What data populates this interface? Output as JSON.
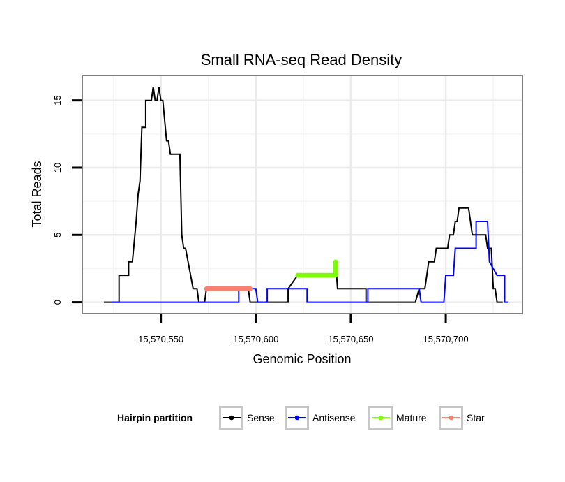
{
  "chart_data": {
    "type": "line",
    "title": "Small RNA-seq Read Density",
    "xlabel": "Genomic Position",
    "ylabel": "Total Reads",
    "xlim": [
      15570509,
      15570740
    ],
    "ylim": [
      -0.8,
      16.8
    ],
    "x_ticks": [
      {
        "value": 15570550,
        "label": "15,570,550"
      },
      {
        "value": 15570600,
        "label": "15,570,600"
      },
      {
        "value": 15570650,
        "label": "15,570,650"
      },
      {
        "value": 15570700,
        "label": "15,570,700"
      }
    ],
    "y_ticks": [
      {
        "value": 0,
        "label": "0"
      },
      {
        "value": 5,
        "label": "5"
      },
      {
        "value": 10,
        "label": "10"
      },
      {
        "value": 15,
        "label": "15"
      }
    ],
    "grid": true,
    "legend": {
      "title": "Hairpin partition",
      "position": "bottom",
      "entries": [
        {
          "name": "Sense",
          "color": "#000000"
        },
        {
          "name": "Antisense",
          "color": "#0000ff"
        },
        {
          "name": "Mature",
          "color": "#7cfc00"
        },
        {
          "name": "Star",
          "color": "#fa8072"
        }
      ]
    },
    "series": [
      {
        "name": "Sense",
        "color": "#000000",
        "points": [
          [
            15570520,
            0
          ],
          [
            15570528,
            0
          ],
          [
            15570528,
            2
          ],
          [
            15570533,
            2
          ],
          [
            15570533,
            3
          ],
          [
            15570535,
            3
          ],
          [
            15570537,
            6
          ],
          [
            15570538,
            8
          ],
          [
            15570539,
            9
          ],
          [
            15570540,
            13
          ],
          [
            15570542,
            13
          ],
          [
            15570542,
            15
          ],
          [
            15570545,
            15
          ],
          [
            15570546,
            16
          ],
          [
            15570547,
            15
          ],
          [
            15570548,
            15
          ],
          [
            15570549,
            16
          ],
          [
            15570550,
            15
          ],
          [
            15570551,
            15
          ],
          [
            15570553,
            12
          ],
          [
            15570554,
            12
          ],
          [
            15570555,
            11
          ],
          [
            15570560,
            11
          ],
          [
            15570561,
            5
          ],
          [
            15570562,
            4
          ],
          [
            15570563,
            4
          ],
          [
            15570567,
            1
          ],
          [
            15570569,
            1
          ],
          [
            15570570,
            0
          ],
          [
            15570573,
            0
          ],
          [
            15570574,
            1
          ],
          [
            15570596,
            1
          ],
          [
            15570597,
            0
          ],
          [
            15570617,
            0
          ],
          [
            15570617,
            1
          ],
          [
            15570622,
            2
          ],
          [
            15570642,
            2
          ],
          [
            15570642,
            3
          ],
          [
            15570643,
            1
          ],
          [
            15570658,
            1
          ],
          [
            15570658,
            0
          ],
          [
            15570684,
            0
          ],
          [
            15570686,
            1
          ],
          [
            15570689,
            1
          ],
          [
            15570690,
            2
          ],
          [
            15570691,
            3
          ],
          [
            15570694,
            3
          ],
          [
            15570695,
            4
          ],
          [
            15570701,
            4
          ],
          [
            15570702,
            5
          ],
          [
            15570704,
            5
          ],
          [
            15570705,
            6
          ],
          [
            15570706,
            6
          ],
          [
            15570707,
            7
          ],
          [
            15570712,
            7
          ],
          [
            15570714,
            5
          ],
          [
            15570721,
            5
          ],
          [
            15570722,
            4
          ],
          [
            15570724,
            4
          ],
          [
            15570725,
            1
          ],
          [
            15570726,
            1
          ],
          [
            15570727,
            0
          ],
          [
            15570730,
            0
          ]
        ]
      },
      {
        "name": "Antisense",
        "color": "#0000ff",
        "points": [
          [
            15570524,
            0
          ],
          [
            15570591,
            0
          ],
          [
            15570591,
            1
          ],
          [
            15570600,
            1
          ],
          [
            15570601,
            0
          ],
          [
            15570606,
            0
          ],
          [
            15570606,
            1
          ],
          [
            15570627,
            1
          ],
          [
            15570627,
            0
          ],
          [
            15570659,
            0
          ],
          [
            15570659,
            1
          ],
          [
            15570686,
            1
          ],
          [
            15570687,
            0
          ],
          [
            15570699,
            0
          ],
          [
            15570700,
            2
          ],
          [
            15570704,
            2
          ],
          [
            15570705,
            4
          ],
          [
            15570716,
            4
          ],
          [
            15570716,
            6
          ],
          [
            15570722,
            6
          ],
          [
            15570723,
            3
          ],
          [
            15570727,
            2
          ],
          [
            15570731,
            2
          ],
          [
            15570731,
            0
          ],
          [
            15570733,
            0
          ]
        ]
      },
      {
        "name": "Mature",
        "color": "#7cfc00",
        "points": [
          [
            15570622,
            2
          ],
          [
            15570642,
            2
          ],
          [
            15570642,
            3
          ]
        ]
      },
      {
        "name": "Star",
        "color": "#fa8072",
        "points": [
          [
            15570574,
            1
          ],
          [
            15570597,
            1
          ]
        ]
      }
    ]
  }
}
